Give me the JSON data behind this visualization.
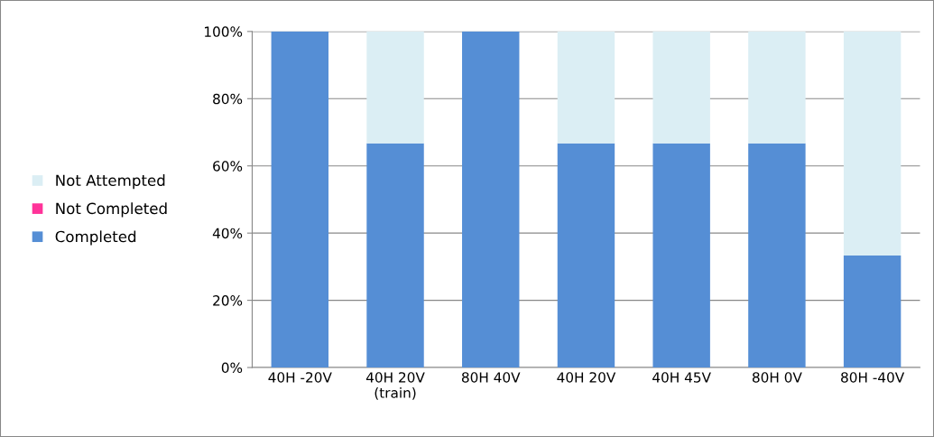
{
  "chart_data": {
    "type": "bar",
    "stacked": true,
    "categories": [
      "40H -20V",
      "40H 20V\n(train)",
      "80H 40V",
      "40H 20V",
      "40H 45V",
      "80H 0V",
      "80H -40V"
    ],
    "series": [
      {
        "name": "Completed",
        "color": "#558ed5",
        "values": [
          100,
          66.7,
          100,
          66.7,
          66.7,
          66.7,
          33.3
        ]
      },
      {
        "name": "Not Completed",
        "color": "#ff3399",
        "values": [
          0,
          0,
          0,
          0,
          0,
          0,
          0
        ]
      },
      {
        "name": "Not Attempted",
        "color": "#dbeef4",
        "values": [
          0,
          33.3,
          0,
          33.3,
          33.3,
          33.3,
          66.7
        ]
      }
    ],
    "ylim": [
      0,
      100
    ],
    "yticks": [
      {
        "value": 0,
        "label": "0%"
      },
      {
        "value": 20,
        "label": "20%"
      },
      {
        "value": 40,
        "label": "40%"
      },
      {
        "value": 60,
        "label": "60%"
      },
      {
        "value": 80,
        "label": "80%"
      },
      {
        "value": 100,
        "label": "100%"
      }
    ],
    "grid": "y",
    "legend": "left"
  }
}
